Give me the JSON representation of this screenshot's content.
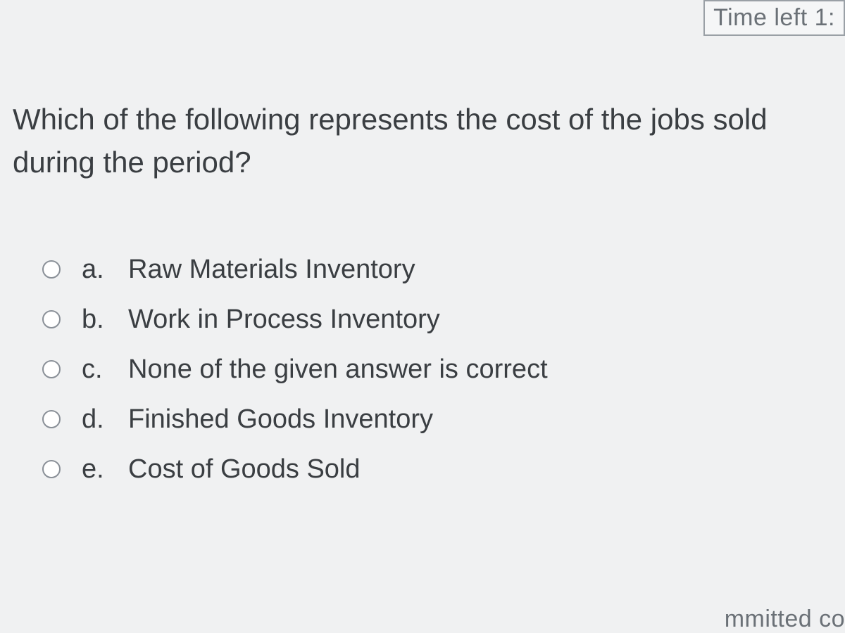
{
  "timer": {
    "label": "Time left 1:"
  },
  "question": {
    "text": "Which of the following represents the cost of the jobs sold during the period?"
  },
  "options": [
    {
      "letter": "a.",
      "text": "Raw Materials Inventory"
    },
    {
      "letter": "b.",
      "text": "Work in Process Inventory"
    },
    {
      "letter": "c.",
      "text": "None of the given answer is correct"
    },
    {
      "letter": "d.",
      "text": "Finished Goods Inventory"
    },
    {
      "letter": "e.",
      "text": "Cost of Goods Sold"
    }
  ],
  "footer": {
    "partial_text": "mmitted co"
  },
  "colors": {
    "background": "#f0f1f2",
    "text": "#3a3e42",
    "muted_text": "#6b7177",
    "border": "#9aa0a6",
    "radio_border": "#8a9098"
  },
  "typography": {
    "question_fontsize": 42,
    "option_fontsize": 38,
    "timer_fontsize": 34
  }
}
